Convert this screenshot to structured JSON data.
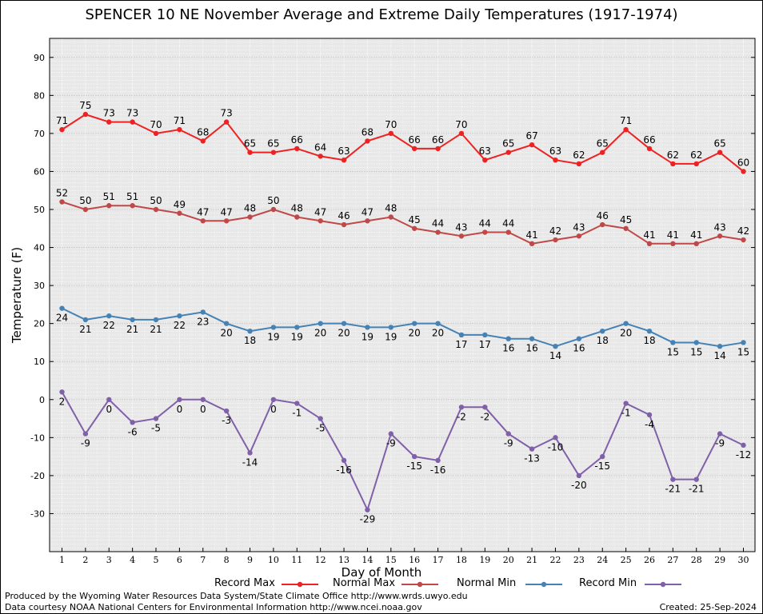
{
  "chart_data": {
    "type": "line",
    "title": "SPENCER 10 NE November Average and Extreme Daily Temperatures (1917-1974)",
    "xlabel": "Day of Month",
    "ylabel": "Temperature (F)",
    "ylim": [
      -40,
      95
    ],
    "yticks": [
      -30,
      -20,
      -10,
      0,
      10,
      20,
      30,
      40,
      50,
      60,
      70,
      80,
      90
    ],
    "x": [
      1,
      2,
      3,
      4,
      5,
      6,
      7,
      8,
      9,
      10,
      11,
      12,
      13,
      14,
      15,
      16,
      17,
      18,
      19,
      20,
      21,
      22,
      23,
      24,
      25,
      26,
      27,
      28,
      29,
      30
    ],
    "grid": true,
    "legend_position": "bottom",
    "series": [
      {
        "name": "Record Max",
        "color": "#ee2222",
        "values": [
          71,
          75,
          73,
          73,
          70,
          71,
          68,
          73,
          65,
          65,
          66,
          64,
          63,
          68,
          70,
          66,
          66,
          70,
          63,
          65,
          67,
          63,
          62,
          65,
          71,
          66,
          62,
          62,
          65,
          60
        ]
      },
      {
        "name": "Normal Max",
        "color": "#c04848",
        "values": [
          52,
          50,
          51,
          51,
          50,
          49,
          47,
          47,
          48,
          50,
          48,
          47,
          46,
          47,
          48,
          45,
          44,
          43,
          44,
          44,
          41,
          42,
          43,
          46,
          45,
          41,
          41,
          41,
          43,
          42
        ]
      },
      {
        "name": "Normal Min",
        "color": "#4682b4",
        "values": [
          24,
          21,
          22,
          21,
          21,
          22,
          23,
          20,
          18,
          19,
          19,
          20,
          20,
          19,
          19,
          20,
          20,
          17,
          17,
          16,
          16,
          14,
          16,
          18,
          20,
          18,
          15,
          15,
          14,
          15
        ]
      },
      {
        "name": "Record Min",
        "color": "#8060a8",
        "values": [
          2,
          -9,
          0,
          -6,
          -5,
          0,
          0,
          -3,
          -14,
          0,
          -1,
          -5,
          -16,
          -29,
          -9,
          -15,
          -16,
          -2,
          -2,
          -9,
          -13,
          -10,
          -20,
          -15,
          -1,
          -4,
          -21,
          -21,
          -9,
          -12
        ]
      }
    ]
  },
  "footer": {
    "producer": "Produced by the Wyoming Water Resources Data System/State Climate Office http://www.wrds.uwyo.edu",
    "courtesy": "Data courtesy NOAA National Centers for Environmental Information http://www.ncei.noaa.gov",
    "created": "Created:  25-Sep-2024"
  }
}
